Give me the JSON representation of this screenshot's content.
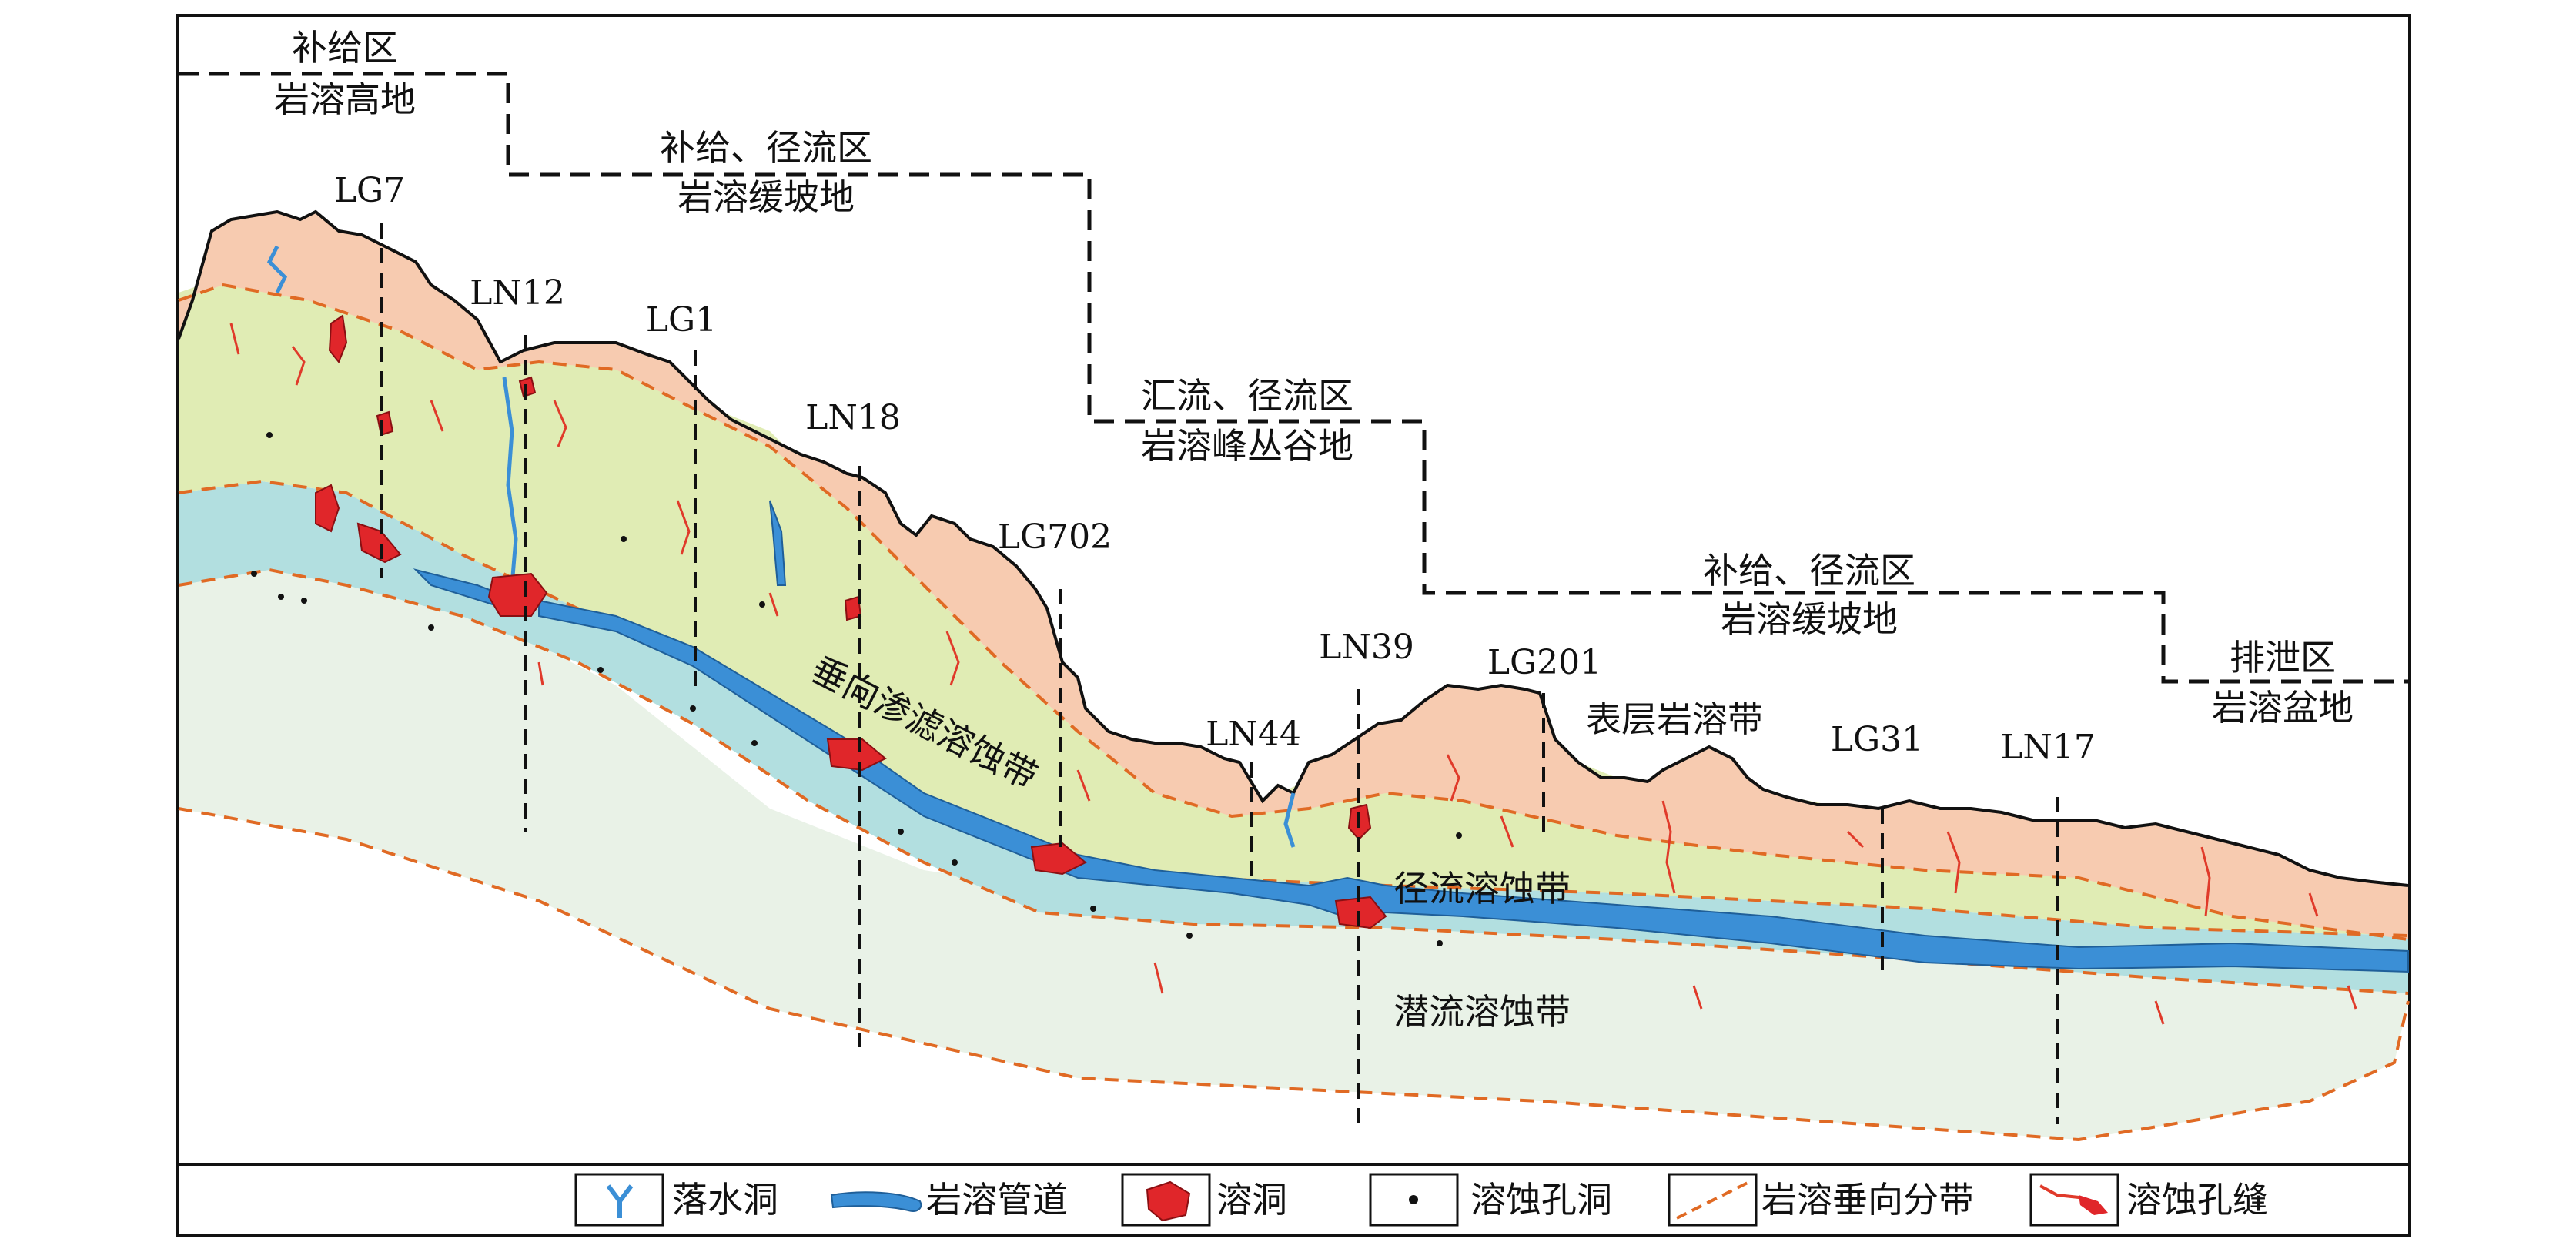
{
  "zones": [
    {
      "name": "补给区",
      "landform": "岩溶高地"
    },
    {
      "name": "补给、径流区",
      "landform": "岩溶缓坡地"
    },
    {
      "name": "汇流、径流区",
      "landform": "岩溶峰丛谷地"
    },
    {
      "name": "补给、径流区",
      "landform": "岩溶缓坡地"
    },
    {
      "name": "排泄区",
      "landform": "岩溶盆地"
    }
  ],
  "wells": [
    "LG7",
    "LN12",
    "LG1",
    "LN18",
    "LG702",
    "LN44",
    "LN39",
    "LG201",
    "LG31",
    "LN17"
  ],
  "belts": {
    "surface": "表层岩溶带",
    "vertical": "垂向渗滤溶蚀带",
    "runoff": "径流溶蚀带",
    "phreatic": "潜流溶蚀带"
  },
  "legend": [
    {
      "icon": "sinkhole-icon",
      "label": "落水洞"
    },
    {
      "icon": "karst-conduit-icon",
      "label": "岩溶管道"
    },
    {
      "icon": "cave-icon",
      "label": "溶洞"
    },
    {
      "icon": "dissolution-pore-icon",
      "label": "溶蚀孔洞"
    },
    {
      "icon": "zoning-line-icon",
      "label": "岩溶垂向分带"
    },
    {
      "icon": "dissolution-fissure-icon",
      "label": "溶蚀孔缝"
    }
  ],
  "colors": {
    "surface_belt": "#f7cbb0",
    "vertical_belt": "#e0ecb4",
    "runoff_belt": "#b2dfe0",
    "phreatic_belt": "#e9f2e7",
    "conduit": "#3b8fd6",
    "cave": "#e0262a",
    "fissure": "#e03a2a",
    "zoning_line": "#e06a24",
    "boundary": "#000000"
  }
}
